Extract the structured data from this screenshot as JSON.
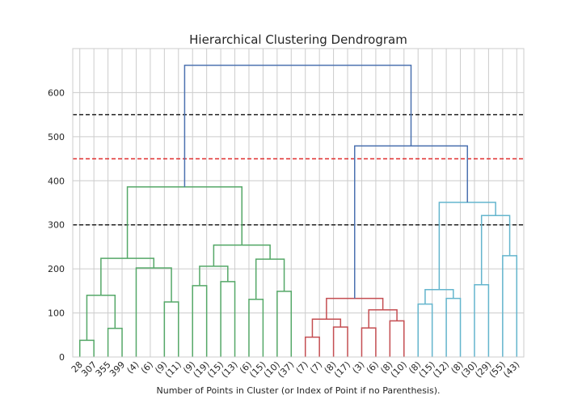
{
  "chart_data": {
    "type": "dendrogram",
    "title": "Hierarchical Clustering Dendrogram",
    "xlabel": "Number of Points in Cluster (or Index of Point if no Parenthesis).",
    "ylabel": "",
    "ylim": [
      0,
      700
    ],
    "yticks": [
      0,
      100,
      200,
      300,
      400,
      500,
      600
    ],
    "grid": true,
    "leaves": [
      "28",
      "307",
      "355",
      "399",
      "(4)",
      "(6)",
      "(9)",
      "(11)",
      "(9)",
      "(19)",
      "(15)",
      "(13)",
      "(6)",
      "(15)",
      "(10)",
      "(37)",
      "(7)",
      "(7)",
      "(8)",
      "(17)",
      "(3)",
      "(6)",
      "(8)",
      "(10)",
      "(8)",
      "(15)",
      "(12)",
      "(8)",
      "(30)",
      "(29)",
      "(55)",
      "(43)"
    ],
    "cut_lines": [
      {
        "y": 550,
        "color": "#222222"
      },
      {
        "y": 450,
        "color": "#e03030"
      },
      {
        "y": 300,
        "color": "#222222"
      }
    ],
    "colors": {
      "green": "#55a868",
      "red": "#c44e52",
      "cyan": "#64b5cd",
      "blue": "#4c72b0",
      "grid": "#cccccc"
    },
    "links": [
      {
        "left": 0,
        "right": 1,
        "height": 38,
        "color": "green"
      },
      {
        "left": 2,
        "right": 3,
        "height": 65,
        "color": "green"
      },
      {
        "left": 0.5,
        "right": 2.5,
        "height": 140,
        "color": "green"
      },
      {
        "left": 4,
        "right": 4,
        "height": 91,
        "color": "green"
      },
      {
        "left": 6,
        "right": 7,
        "height": 125,
        "color": "green"
      },
      {
        "left": 4,
        "right": 6.5,
        "height": 202,
        "color": "green"
      },
      {
        "left": 1.5,
        "right": 5.25,
        "height": 224,
        "color": "green"
      },
      {
        "left": 8,
        "right": 9,
        "height": 162,
        "color": "green"
      },
      {
        "left": 10,
        "right": 11,
        "height": 171,
        "color": "green"
      },
      {
        "left": 8.5,
        "right": 10.5,
        "height": 206,
        "color": "green"
      },
      {
        "left": 12,
        "right": 13,
        "height": 131,
        "color": "green"
      },
      {
        "left": 14,
        "right": 15,
        "height": 149,
        "color": "green"
      },
      {
        "left": 12.5,
        "right": 14.5,
        "height": 222,
        "color": "green"
      },
      {
        "left": 9.5,
        "right": 13.5,
        "height": 254,
        "color": "green"
      },
      {
        "left": 3.375,
        "right": 11.5,
        "height": 386,
        "color": "green"
      },
      {
        "left": 16,
        "right": 17,
        "height": 45,
        "color": "red"
      },
      {
        "left": 18,
        "right": 19,
        "height": 68,
        "color": "red"
      },
      {
        "left": 16.5,
        "right": 18.5,
        "height": 86,
        "color": "red"
      },
      {
        "left": 20,
        "right": 21,
        "height": 66,
        "color": "red"
      },
      {
        "left": 22,
        "right": 23,
        "height": 82,
        "color": "red"
      },
      {
        "left": 20.5,
        "right": 22.5,
        "height": 107,
        "color": "red"
      },
      {
        "left": 17.5,
        "right": 21.5,
        "height": 133,
        "color": "red"
      },
      {
        "left": 24,
        "right": 25,
        "height": 120,
        "color": "cyan"
      },
      {
        "left": 26,
        "right": 27,
        "height": 133,
        "color": "cyan"
      },
      {
        "left": 24.5,
        "right": 26.5,
        "height": 153,
        "color": "cyan"
      },
      {
        "left": 28,
        "right": 29,
        "height": 164,
        "color": "cyan"
      },
      {
        "left": 30,
        "right": 31,
        "height": 230,
        "color": "cyan"
      },
      {
        "left": 28.5,
        "right": 30.5,
        "height": 321,
        "color": "cyan"
      },
      {
        "left": 25.5,
        "right": 29.5,
        "height": 351,
        "color": "cyan"
      },
      {
        "left": 19.5,
        "right": 27.5,
        "height": 479,
        "color": "blue"
      },
      {
        "left": 7.4375,
        "right": 23.5,
        "height": 662,
        "color": "blue"
      }
    ]
  }
}
